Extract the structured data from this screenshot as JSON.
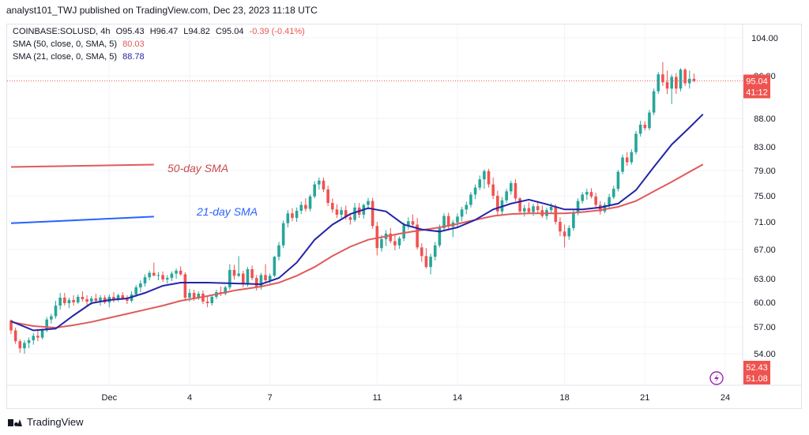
{
  "header": "analyst101_TWJ published on TradingView.com, Dec 23, 2023 11:18 UTC",
  "legend": {
    "symbol_line": "COINBASE:SOLUSD, 4h",
    "o": "O95.43",
    "h": "H96.47",
    "l": "L94.82",
    "c": "C95.04",
    "chg": "-0.39 (-0.41%)",
    "sma50_label": "SMA (50, close, 0, SMA, 5)",
    "sma50_value": "80.03",
    "sma21_label": "SMA (21, close, 0, SMA, 5)",
    "sma21_value": "88.78"
  },
  "annotations": {
    "sma50": "50-day SMA",
    "sma21": "21-day SMA"
  },
  "price_tags": {
    "last_price": "95.04",
    "countdown": "41:12",
    "low_a": "52.43",
    "low_b": "51.08"
  },
  "colors": {
    "up": "#26a69a",
    "down": "#ef5350",
    "sma50": "#e05a5a",
    "sma21": "#2424a8",
    "annotation_sma50": "#c94a4a",
    "annotation_sma21": "#2962ff",
    "last_price_tag": "#ef5350",
    "low_tag": "#ef5350",
    "lightning_icon": "#9c27b0"
  },
  "footer": {
    "brand": "TradingView"
  },
  "chart_data": {
    "type": "candlestick",
    "symbol": "COINBASE:SOLUSD",
    "interval": "4h",
    "y_ticks": [
      54.0,
      57.0,
      60.0,
      63.0,
      67.0,
      71.0,
      75.0,
      79.0,
      83.0,
      88.0,
      96.0,
      104.0
    ],
    "y_tick_labels": [
      "54.00",
      "57.00",
      "60.00",
      "63.00",
      "67.00",
      "71.00",
      "75.00",
      "79.00",
      "83.00",
      "88.00",
      "96.00",
      "104.00"
    ],
    "x_ticks": [
      {
        "label": "Dec",
        "index": 22
      },
      {
        "label": "4",
        "index": 40
      },
      {
        "label": "7",
        "index": 58
      },
      {
        "label": "11",
        "index": 82
      },
      {
        "label": "14",
        "index": 100
      },
      {
        "label": "18",
        "index": 124
      },
      {
        "label": "21",
        "index": 142
      },
      {
        "label": "24",
        "index": 160
      }
    ],
    "candles": [
      [
        57.8,
        57.9,
        56.2,
        56.6
      ],
      [
        56.6,
        56.9,
        55.1,
        55.4
      ],
      [
        55.4,
        55.6,
        54.1,
        54.6
      ],
      [
        54.6,
        55.5,
        54.0,
        55.2
      ],
      [
        55.2,
        55.8,
        54.6,
        55.5
      ],
      [
        55.5,
        56.3,
        55.0,
        56.0
      ],
      [
        56.0,
        56.6,
        55.4,
        55.8
      ],
      [
        55.8,
        56.8,
        55.6,
        56.6
      ],
      [
        56.6,
        58.2,
        56.4,
        57.9
      ],
      [
        57.9,
        58.6,
        57.4,
        58.3
      ],
      [
        58.3,
        60.2,
        58.0,
        59.6
      ],
      [
        59.6,
        61.2,
        59.1,
        60.6
      ],
      [
        60.6,
        61.2,
        59.6,
        59.9
      ],
      [
        59.9,
        60.6,
        59.3,
        60.3
      ],
      [
        60.3,
        60.9,
        59.6,
        60.0
      ],
      [
        60.0,
        61.0,
        59.8,
        60.7
      ],
      [
        60.7,
        61.4,
        60.1,
        60.4
      ],
      [
        60.4,
        60.9,
        59.6,
        60.1
      ],
      [
        60.1,
        60.8,
        59.7,
        60.5
      ],
      [
        60.5,
        61.1,
        59.9,
        60.2
      ],
      [
        60.2,
        60.9,
        59.6,
        60.6
      ],
      [
        60.6,
        60.9,
        59.8,
        60.0
      ],
      [
        60.0,
        61.0,
        59.4,
        60.7
      ],
      [
        60.7,
        61.3,
        60.0,
        60.4
      ],
      [
        60.4,
        61.1,
        60.1,
        60.9
      ],
      [
        60.9,
        61.3,
        60.3,
        60.5
      ],
      [
        60.5,
        60.9,
        59.8,
        60.2
      ],
      [
        60.2,
        61.4,
        60.0,
        61.0
      ],
      [
        61.0,
        62.2,
        60.7,
        61.9
      ],
      [
        61.9,
        62.8,
        61.3,
        62.4
      ],
      [
        62.4,
        63.6,
        62.0,
        63.2
      ],
      [
        63.2,
        64.1,
        62.8,
        63.8
      ],
      [
        63.8,
        65.2,
        63.4,
        63.4
      ],
      [
        63.4,
        63.9,
        62.8,
        63.5
      ],
      [
        63.5,
        64.0,
        62.6,
        62.9
      ],
      [
        62.9,
        63.5,
        62.4,
        63.1
      ],
      [
        63.1,
        64.0,
        62.7,
        63.7
      ],
      [
        63.7,
        64.4,
        63.0,
        64.1
      ],
      [
        64.1,
        64.7,
        63.4,
        63.6
      ],
      [
        63.6,
        63.9,
        60.3,
        60.6
      ],
      [
        60.6,
        61.7,
        60.1,
        61.2
      ],
      [
        61.2,
        61.6,
        60.2,
        60.5
      ],
      [
        60.5,
        61.4,
        60.3,
        61.1
      ],
      [
        61.1,
        61.5,
        59.8,
        60.1
      ],
      [
        60.1,
        60.7,
        59.4,
        59.9
      ],
      [
        59.9,
        60.9,
        59.6,
        60.7
      ],
      [
        60.7,
        61.6,
        60.4,
        61.3
      ],
      [
        61.3,
        62.0,
        60.8,
        61.1
      ],
      [
        61.1,
        62.1,
        60.9,
        61.9
      ],
      [
        61.9,
        65.0,
        61.6,
        64.2
      ],
      [
        64.2,
        64.9,
        62.9,
        63.4
      ],
      [
        63.4,
        66.1,
        63.2,
        63.7
      ],
      [
        63.7,
        64.1,
        61.9,
        62.3
      ],
      [
        62.3,
        64.6,
        62.0,
        64.3
      ],
      [
        64.3,
        64.8,
        62.8,
        63.1
      ],
      [
        63.1,
        63.5,
        61.5,
        61.9
      ],
      [
        61.9,
        63.8,
        61.6,
        63.5
      ],
      [
        63.5,
        65.0,
        62.5,
        62.8
      ],
      [
        62.8,
        63.7,
        62.4,
        63.4
      ],
      [
        63.4,
        66.1,
        63.2,
        66.0
      ],
      [
        66.0,
        68.1,
        65.5,
        67.6
      ],
      [
        67.6,
        71.2,
        67.2,
        70.8
      ],
      [
        70.8,
        72.8,
        70.2,
        72.3
      ],
      [
        72.3,
        73.1,
        71.1,
        71.6
      ],
      [
        71.6,
        73.2,
        71.0,
        72.7
      ],
      [
        72.7,
        74.1,
        72.2,
        73.6
      ],
      [
        73.6,
        74.6,
        72.6,
        73.0
      ],
      [
        73.0,
        75.2,
        72.6,
        74.9
      ],
      [
        74.9,
        77.3,
        74.6,
        76.8
      ],
      [
        76.8,
        77.9,
        76.0,
        77.4
      ],
      [
        77.4,
        77.9,
        75.6,
        76.0
      ],
      [
        76.0,
        76.6,
        73.4,
        73.9
      ],
      [
        73.9,
        74.6,
        72.4,
        72.9
      ],
      [
        72.9,
        73.7,
        71.6,
        72.1
      ],
      [
        72.1,
        73.3,
        71.6,
        72.8
      ],
      [
        72.8,
        73.5,
        71.3,
        71.7
      ],
      [
        71.7,
        72.3,
        70.6,
        71.3
      ],
      [
        71.3,
        73.9,
        71.0,
        73.2
      ],
      [
        73.2,
        73.9,
        71.6,
        72.1
      ],
      [
        72.1,
        73.8,
        71.5,
        73.6
      ],
      [
        73.6,
        74.7,
        72.9,
        74.2
      ],
      [
        74.2,
        74.7,
        70.0,
        70.4
      ],
      [
        70.4,
        71.0,
        66.2,
        67.2
      ],
      [
        67.2,
        69.1,
        66.7,
        68.5
      ],
      [
        68.5,
        69.8,
        67.5,
        69.3
      ],
      [
        69.3,
        70.1,
        67.9,
        68.2
      ],
      [
        68.2,
        69.1,
        66.9,
        67.6
      ],
      [
        67.6,
        68.9,
        67.1,
        68.6
      ],
      [
        68.6,
        70.9,
        68.2,
        70.5
      ],
      [
        70.5,
        71.7,
        69.9,
        71.1
      ],
      [
        71.1,
        72.1,
        70.2,
        70.6
      ],
      [
        70.6,
        71.6,
        67.0,
        67.3
      ],
      [
        67.3,
        67.9,
        65.3,
        66.1
      ],
      [
        66.1,
        67.2,
        64.4,
        64.6
      ],
      [
        64.6,
        66.4,
        63.6,
        66.0
      ],
      [
        66.0,
        68.1,
        65.5,
        67.6
      ],
      [
        67.6,
        70.6,
        67.3,
        70.1
      ],
      [
        70.1,
        72.3,
        69.6,
        71.9
      ],
      [
        71.9,
        72.4,
        69.9,
        70.3
      ],
      [
        70.3,
        71.3,
        68.8,
        70.9
      ],
      [
        70.9,
        72.3,
        70.2,
        71.8
      ],
      [
        71.8,
        73.3,
        71.1,
        72.9
      ],
      [
        72.9,
        74.1,
        72.2,
        73.6
      ],
      [
        73.6,
        75.6,
        73.2,
        75.2
      ],
      [
        75.2,
        76.8,
        74.5,
        76.3
      ],
      [
        76.3,
        78.2,
        75.9,
        77.6
      ],
      [
        77.6,
        79.2,
        76.1,
        78.9
      ],
      [
        78.9,
        79.3,
        76.3,
        76.8
      ],
      [
        76.8,
        77.9,
        74.5,
        75.0
      ],
      [
        75.0,
        75.8,
        72.1,
        72.6
      ],
      [
        72.6,
        74.8,
        72.0,
        74.3
      ],
      [
        74.3,
        76.1,
        73.9,
        75.7
      ],
      [
        75.7,
        77.4,
        75.2,
        77.0
      ],
      [
        77.0,
        77.6,
        74.2,
        74.6
      ],
      [
        74.6,
        74.8,
        72.1,
        72.6
      ],
      [
        72.6,
        73.6,
        71.8,
        73.1
      ],
      [
        73.1,
        74.0,
        72.3,
        72.5
      ],
      [
        72.5,
        73.8,
        71.9,
        73.4
      ],
      [
        73.4,
        74.2,
        72.4,
        72.8
      ],
      [
        72.8,
        73.5,
        71.6,
        71.9
      ],
      [
        71.9,
        73.2,
        71.3,
        72.8
      ],
      [
        72.8,
        73.9,
        72.2,
        73.3
      ],
      [
        73.3,
        73.7,
        70.6,
        71.0
      ],
      [
        71.0,
        71.7,
        68.9,
        69.6
      ],
      [
        69.6,
        70.6,
        67.3,
        68.9
      ],
      [
        68.9,
        70.5,
        68.4,
        70.1
      ],
      [
        70.1,
        72.8,
        69.7,
        72.4
      ],
      [
        72.4,
        74.6,
        72.0,
        74.2
      ],
      [
        74.2,
        75.6,
        73.8,
        75.2
      ],
      [
        75.2,
        76.1,
        74.4,
        75.6
      ],
      [
        75.6,
        76.2,
        74.6,
        74.9
      ],
      [
        74.9,
        75.5,
        73.2,
        73.6
      ],
      [
        73.6,
        74.2,
        72.1,
        72.6
      ],
      [
        72.6,
        74.0,
        72.3,
        73.6
      ],
      [
        73.6,
        75.3,
        73.1,
        74.8
      ],
      [
        74.8,
        76.6,
        74.5,
        76.1
      ],
      [
        76.1,
        79.1,
        75.7,
        78.8
      ],
      [
        78.8,
        81.7,
        78.4,
        81.2
      ],
      [
        81.2,
        82.1,
        79.8,
        80.4
      ],
      [
        80.4,
        82.6,
        80.0,
        82.1
      ],
      [
        82.1,
        85.8,
        81.7,
        85.3
      ],
      [
        85.3,
        87.6,
        84.8,
        86.9
      ],
      [
        86.9,
        87.5,
        85.9,
        86.3
      ],
      [
        86.3,
        89.6,
        85.9,
        89.1
      ],
      [
        89.1,
        93.6,
        88.6,
        93.1
      ],
      [
        93.1,
        96.8,
        92.6,
        96.3
      ],
      [
        96.3,
        98.9,
        94.1,
        94.8
      ],
      [
        94.8,
        97.1,
        92.6,
        93.6
      ],
      [
        93.6,
        96.3,
        90.7,
        95.8
      ],
      [
        95.8,
        96.6,
        92.6,
        93.6
      ],
      [
        93.6,
        97.6,
        93.1,
        97.3
      ],
      [
        97.3,
        97.6,
        94.1,
        94.6
      ],
      [
        94.6,
        97.1,
        93.6,
        95.43
      ],
      [
        95.43,
        96.47,
        94.82,
        95.04
      ]
    ],
    "sma21": [
      [
        0,
        57.7
      ],
      [
        5,
        56.6
      ],
      [
        10,
        56.8
      ],
      [
        14,
        58.4
      ],
      [
        18,
        59.9
      ],
      [
        22,
        60.3
      ],
      [
        26,
        60.5
      ],
      [
        30,
        61.2
      ],
      [
        34,
        62.1
      ],
      [
        38,
        62.5
      ],
      [
        44,
        62.5
      ],
      [
        50,
        62.4
      ],
      [
        56,
        62.3
      ],
      [
        60,
        63.1
      ],
      [
        64,
        65.2
      ],
      [
        68,
        68.4
      ],
      [
        72,
        70.6
      ],
      [
        76,
        72.2
      ],
      [
        80,
        73.1
      ],
      [
        84,
        72.6
      ],
      [
        88,
        70.6
      ],
      [
        92,
        69.9
      ],
      [
        96,
        69.6
      ],
      [
        100,
        70.2
      ],
      [
        104,
        71.3
      ],
      [
        108,
        72.9
      ],
      [
        112,
        73.8
      ],
      [
        116,
        74.4
      ],
      [
        120,
        73.7
      ],
      [
        124,
        72.9
      ],
      [
        128,
        72.9
      ],
      [
        132,
        73.2
      ],
      [
        136,
        73.8
      ],
      [
        140,
        75.9
      ],
      [
        144,
        79.6
      ],
      [
        148,
        83.4
      ],
      [
        152,
        86.4
      ],
      [
        155,
        88.78
      ]
    ],
    "sma50": [
      [
        0,
        57.6
      ],
      [
        5,
        57.1
      ],
      [
        10,
        56.9
      ],
      [
        14,
        57.2
      ],
      [
        18,
        57.6
      ],
      [
        22,
        58.1
      ],
      [
        26,
        58.6
      ],
      [
        30,
        59.1
      ],
      [
        34,
        59.6
      ],
      [
        38,
        60.2
      ],
      [
        44,
        60.8
      ],
      [
        50,
        61.5
      ],
      [
        56,
        62.0
      ],
      [
        60,
        62.5
      ],
      [
        64,
        63.4
      ],
      [
        68,
        64.6
      ],
      [
        72,
        66.1
      ],
      [
        76,
        67.4
      ],
      [
        80,
        68.4
      ],
      [
        84,
        68.9
      ],
      [
        88,
        69.4
      ],
      [
        92,
        69.8
      ],
      [
        96,
        70.2
      ],
      [
        100,
        70.7
      ],
      [
        104,
        71.3
      ],
      [
        108,
        71.9
      ],
      [
        112,
        72.2
      ],
      [
        116,
        72.3
      ],
      [
        120,
        72.3
      ],
      [
        124,
        72.3
      ],
      [
        128,
        72.5
      ],
      [
        132,
        72.8
      ],
      [
        136,
        73.3
      ],
      [
        140,
        74.2
      ],
      [
        144,
        75.7
      ],
      [
        148,
        77.2
      ],
      [
        152,
        78.8
      ],
      [
        155,
        80.03
      ]
    ],
    "sma50_segment": [
      [
        0,
        79.6
      ],
      [
        32,
        80.0
      ]
    ],
    "sma21_segment": [
      [
        0,
        70.8
      ],
      [
        32,
        71.8
      ]
    ]
  }
}
